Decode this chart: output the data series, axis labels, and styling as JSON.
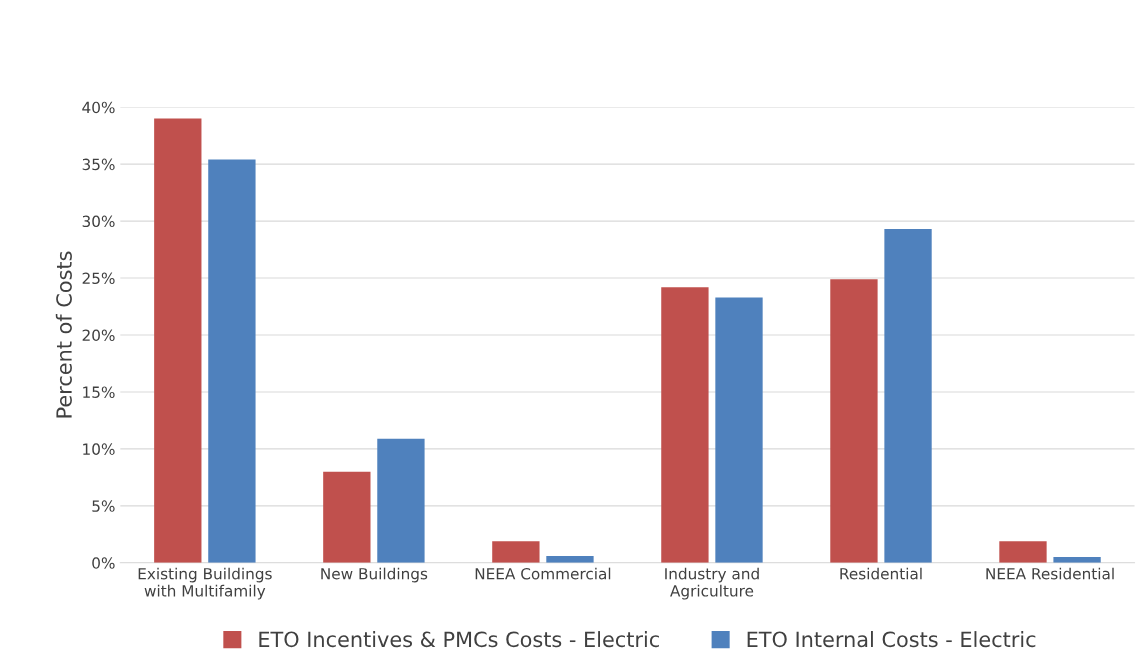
{
  "chart_data": {
    "type": "bar",
    "categories": [
      "Existing Buildings\nwith Multifamily",
      "New Buildings",
      "NEEA Commercial",
      "Industry and\nAgriculture",
      "Residential",
      "NEEA Residential"
    ],
    "series": [
      {
        "name": "ETO Incentives & PMCs Costs - Electric",
        "color": "#c0504d",
        "values": [
          39.0,
          8.0,
          1.9,
          24.2,
          24.9,
          1.9
        ]
      },
      {
        "name": "ETO Internal Costs - Electric",
        "color": "#4f81bd",
        "values": [
          35.4,
          10.9,
          0.6,
          23.3,
          29.3,
          0.5
        ]
      }
    ],
    "ylabel": "Percent of Costs",
    "ylim": [
      0,
      40
    ],
    "yticks": [
      {
        "value": 0,
        "label": "0%"
      },
      {
        "value": 5,
        "label": "5%"
      },
      {
        "value": 10,
        "label": "10%"
      },
      {
        "value": 15,
        "label": "15%"
      },
      {
        "value": 20,
        "label": "20%"
      },
      {
        "value": 25,
        "label": "25%"
      },
      {
        "value": 30,
        "label": "30%"
      },
      {
        "value": 35,
        "label": "35%"
      },
      {
        "value": 40,
        "label": "40%"
      }
    ],
    "grid": "y",
    "legend": "bottom"
  }
}
